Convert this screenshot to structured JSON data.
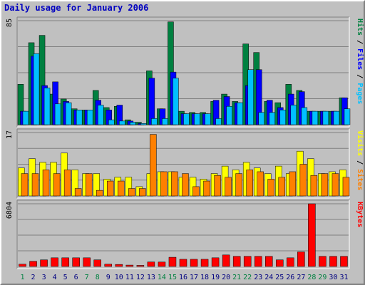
{
  "title": "Daily usage for January 2006",
  "colors": {
    "background": "#c0c0c0",
    "plot_background": "#c0c0c0",
    "hits": "#008040",
    "files": "#0000ff",
    "pages": "#00c0ff",
    "visits": "#ffff00",
    "sites": "#ff8000",
    "kbytes": "#ff0000",
    "weekday_label": "#000080",
    "weekend_label": "#008040"
  },
  "chart_data": [
    {
      "type": "bar",
      "name": "hits-files-pages",
      "categories": [
        "1",
        "2",
        "3",
        "4",
        "5",
        "6",
        "7",
        "8",
        "9",
        "10",
        "11",
        "12",
        "13",
        "14",
        "15",
        "16",
        "17",
        "18",
        "19",
        "20",
        "21",
        "22",
        "23",
        "24",
        "25",
        "26",
        "27",
        "28",
        "29",
        "30",
        "31"
      ],
      "weekend_days": [
        "1",
        "7",
        "8",
        "14",
        "15",
        "21",
        "22",
        "28",
        "29"
      ],
      "ymax_label": "85",
      "ylim": [
        0,
        85
      ],
      "series": [
        {
          "name": "Hits",
          "values": [
            33,
            67,
            73,
            25,
            21,
            13,
            12,
            28,
            14,
            15,
            4,
            2,
            44,
            13,
            84,
            11,
            10,
            10,
            19,
            25,
            19,
            66,
            59,
            19,
            18,
            33,
            28,
            11,
            11,
            11,
            22
          ]
        },
        {
          "name": "Files",
          "values": [
            11,
            56,
            32,
            35,
            19,
            12,
            12,
            20,
            12,
            16,
            3,
            1,
            38,
            13,
            43,
            9,
            9,
            9,
            20,
            23,
            18,
            32,
            45,
            20,
            14,
            25,
            27,
            11,
            11,
            11,
            22
          ]
        },
        {
          "name": "Pages",
          "values": [
            11,
            58,
            30,
            17,
            18,
            12,
            12,
            16,
            4,
            3,
            2,
            1,
            5,
            5,
            38,
            9,
            9,
            9,
            5,
            15,
            18,
            45,
            10,
            10,
            12,
            16,
            14,
            11,
            11,
            11,
            13
          ]
        }
      ],
      "axis_labels": [
        "Pages",
        "Files",
        "Hits"
      ]
    },
    {
      "type": "bar",
      "name": "visits-sites",
      "categories": [
        "1",
        "2",
        "3",
        "4",
        "5",
        "6",
        "7",
        "8",
        "9",
        "10",
        "11",
        "12",
        "13",
        "14",
        "15",
        "16",
        "17",
        "18",
        "19",
        "20",
        "21",
        "22",
        "23",
        "24",
        "25",
        "26",
        "27",
        "28",
        "29",
        "30",
        "31"
      ],
      "ymax_label": "17",
      "ylim": [
        0,
        17
      ],
      "series": [
        {
          "name": "Visits",
          "values": [
            7.5,
            10,
            9,
            9,
            11.5,
            7,
            6,
            6,
            4.5,
            5,
            5,
            2.5,
            6,
            6.5,
            6.5,
            5,
            5,
            4.5,
            6,
            8,
            7,
            9,
            7.5,
            6,
            8,
            6,
            12,
            10,
            6,
            6.5,
            7
          ]
        },
        {
          "name": "Sites",
          "values": [
            6,
            6,
            7,
            6,
            7,
            2,
            6,
            1.5,
            4,
            4,
            2,
            2,
            16.5,
            6.5,
            6.5,
            6,
            2.5,
            4,
            5.5,
            5,
            6,
            7,
            6.5,
            4.5,
            5,
            6.5,
            8.5,
            5.5,
            6,
            6,
            5
          ]
        }
      ],
      "axis_labels": [
        "Sites",
        "Visits"
      ]
    },
    {
      "type": "bar",
      "name": "kbytes",
      "categories": [
        "1",
        "2",
        "3",
        "4",
        "5",
        "6",
        "7",
        "8",
        "9",
        "10",
        "11",
        "12",
        "13",
        "14",
        "15",
        "16",
        "17",
        "18",
        "19",
        "20",
        "21",
        "22",
        "23",
        "24",
        "25",
        "26",
        "27",
        "28",
        "29",
        "30",
        "31"
      ],
      "ymax_label": "6804",
      "ylim": [
        0,
        6804
      ],
      "series": [
        {
          "name": "KBytes",
          "values": [
            250,
            560,
            720,
            940,
            940,
            940,
            940,
            720,
            250,
            220,
            150,
            120,
            490,
            480,
            1000,
            780,
            780,
            780,
            940,
            1250,
            1100,
            1100,
            1100,
            1100,
            720,
            940,
            1580,
            6804,
            1100,
            1100,
            1100
          ]
        }
      ],
      "axis_labels": [
        "KBytes"
      ]
    }
  ]
}
